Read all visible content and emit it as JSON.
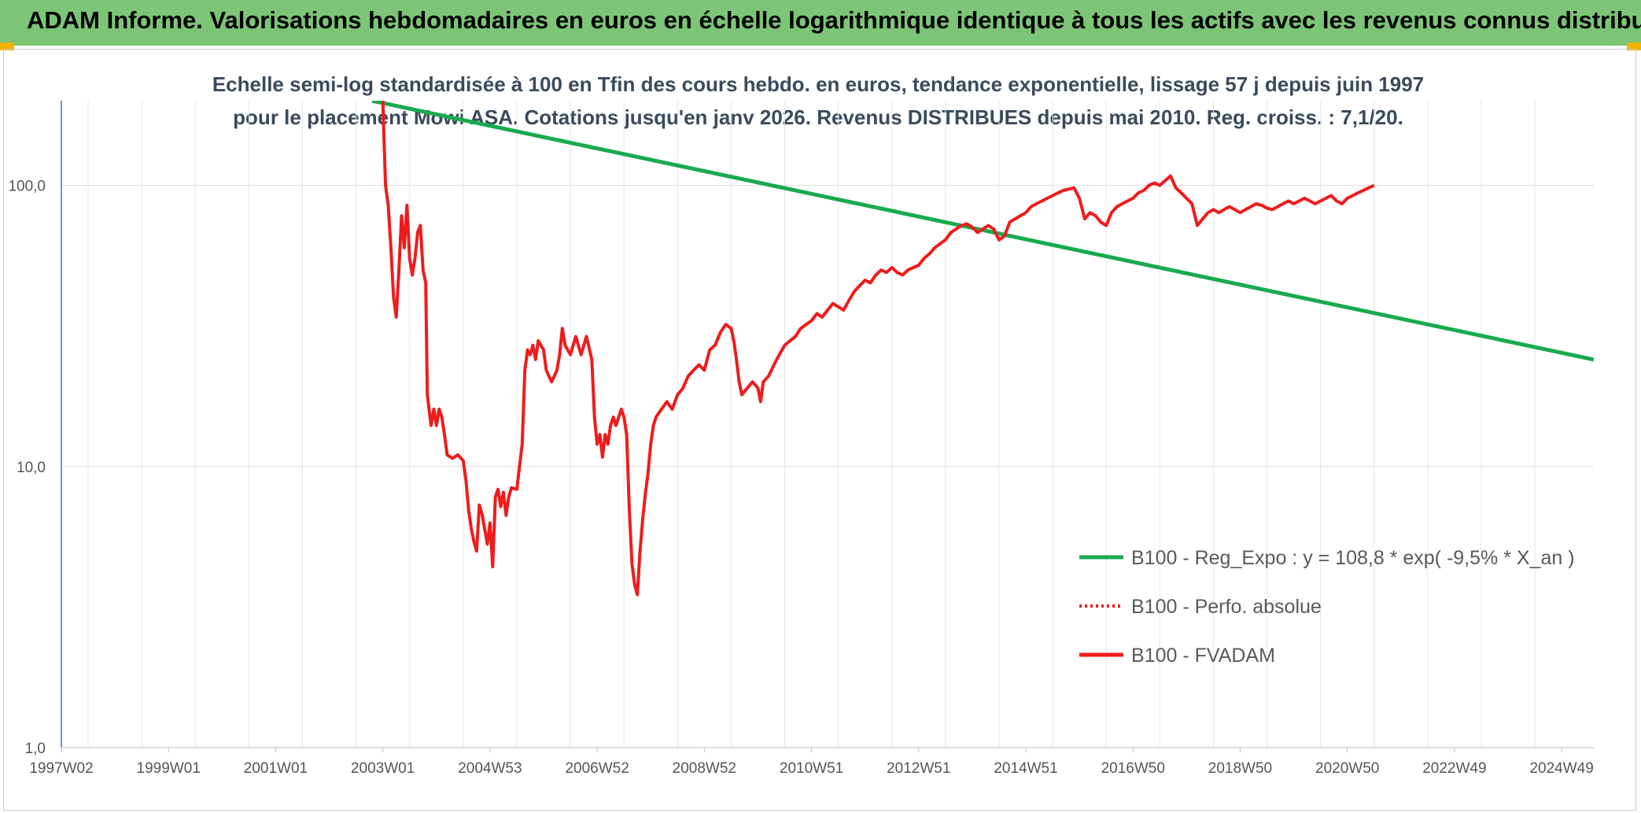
{
  "header": {
    "title": "ADAM Informe. Valorisations hebdomadaires en euros en échelle logarithmique identique à tous les actifs avec les revenus connus distribués"
  },
  "chart_data": {
    "type": "line",
    "title": "Echelle semi-log standardisée à 100 en Tfin des cours hebdo. en euros, tendance exponentielle, lissage 57 j depuis juin 1997 pour le placement Mowi ASA. Cotations jusqu'en janv 2026. Revenus DISTRIBUES depuis mai 2010. Reg. croiss. : 7,1/20.",
    "xlabel": "",
    "ylabel": "",
    "y_scale": "log",
    "ylim": [
      1,
      200
    ],
    "xlim": [
      1997.5,
      2026.1
    ],
    "y_tick_labels": [
      "1,0",
      "10,0",
      "100,0"
    ],
    "y_tick_values": [
      1,
      10,
      100
    ],
    "x_tick_labels": [
      "1997W02",
      "1999W01",
      "2001W01",
      "2003W01",
      "2004W53",
      "2006W52",
      "2008W52",
      "2010W51",
      "2012W51",
      "2014W51",
      "2016W50",
      "2018W50",
      "2020W50",
      "2022W49",
      "2024W49"
    ],
    "x_tick_values": [
      1997.5,
      1999.5,
      2001.5,
      2003.5,
      2005.5,
      2007.5,
      2009.5,
      2011.5,
      2013.5,
      2015.5,
      2017.5,
      2019.5,
      2021.5,
      2023.5,
      2025.5
    ],
    "grid": true,
    "legend_position": "right",
    "series": [
      {
        "name": "B100 - Reg_Expo : y = 108,8 * exp( -9,5% *  X_an )",
        "color": "#1aaa4f",
        "style": "solid",
        "points": [
          [
            2003.3,
            200
          ],
          [
            2026.1,
            24
          ]
        ]
      },
      {
        "name": "B100 - Perfo. absolue",
        "color": "#ee1c1c",
        "style": "dotted",
        "points": []
      },
      {
        "name": "B100 - FVADAM",
        "color": "#ee1c1c",
        "style": "solid",
        "points": [
          [
            2003.5,
            200
          ],
          [
            2003.52,
            150
          ],
          [
            2003.55,
            100
          ],
          [
            2003.6,
            85
          ],
          [
            2003.65,
            60
          ],
          [
            2003.7,
            40
          ],
          [
            2003.75,
            34
          ],
          [
            2003.8,
            50
          ],
          [
            2003.85,
            78
          ],
          [
            2003.9,
            60
          ],
          [
            2003.95,
            85
          ],
          [
            2004.0,
            55
          ],
          [
            2004.05,
            48
          ],
          [
            2004.1,
            55
          ],
          [
            2004.15,
            68
          ],
          [
            2004.2,
            72
          ],
          [
            2004.25,
            50
          ],
          [
            2004.3,
            45
          ],
          [
            2004.33,
            18
          ],
          [
            2004.4,
            14
          ],
          [
            2004.45,
            16
          ],
          [
            2004.5,
            14
          ],
          [
            2004.55,
            16
          ],
          [
            2004.6,
            15
          ],
          [
            2004.65,
            13
          ],
          [
            2004.7,
            11
          ],
          [
            2004.8,
            10.7
          ],
          [
            2004.9,
            11
          ],
          [
            2005.0,
            10.5
          ],
          [
            2005.05,
            9
          ],
          [
            2005.1,
            7
          ],
          [
            2005.15,
            6
          ],
          [
            2005.2,
            5.4
          ],
          [
            2005.25,
            5.0
          ],
          [
            2005.3,
            7.3
          ],
          [
            2005.35,
            6.8
          ],
          [
            2005.4,
            6
          ],
          [
            2005.45,
            5.3
          ],
          [
            2005.5,
            6.3
          ],
          [
            2005.55,
            4.4
          ],
          [
            2005.6,
            7.8
          ],
          [
            2005.65,
            8.3
          ],
          [
            2005.7,
            7.2
          ],
          [
            2005.75,
            8.1
          ],
          [
            2005.8,
            6.7
          ],
          [
            2005.85,
            7.8
          ],
          [
            2005.9,
            8.4
          ],
          [
            2006.0,
            8.3
          ],
          [
            2006.05,
            10
          ],
          [
            2006.1,
            12
          ],
          [
            2006.15,
            22
          ],
          [
            2006.2,
            26
          ],
          [
            2006.25,
            25
          ],
          [
            2006.3,
            27
          ],
          [
            2006.35,
            24
          ],
          [
            2006.4,
            28
          ],
          [
            2006.5,
            26
          ],
          [
            2006.55,
            22
          ],
          [
            2006.65,
            20
          ],
          [
            2006.75,
            22
          ],
          [
            2006.8,
            25
          ],
          [
            2006.85,
            31
          ],
          [
            2006.9,
            27
          ],
          [
            2007.0,
            25
          ],
          [
            2007.1,
            29
          ],
          [
            2007.2,
            25
          ],
          [
            2007.3,
            29
          ],
          [
            2007.4,
            24
          ],
          [
            2007.45,
            15
          ],
          [
            2007.5,
            12
          ],
          [
            2007.55,
            13
          ],
          [
            2007.6,
            10.8
          ],
          [
            2007.65,
            13
          ],
          [
            2007.7,
            12
          ],
          [
            2007.75,
            14
          ],
          [
            2007.8,
            15
          ],
          [
            2007.85,
            14
          ],
          [
            2007.95,
            16
          ],
          [
            2008.0,
            15
          ],
          [
            2008.05,
            13
          ],
          [
            2008.1,
            7
          ],
          [
            2008.15,
            4.5
          ],
          [
            2008.2,
            3.8
          ],
          [
            2008.25,
            3.5
          ],
          [
            2008.3,
            5
          ],
          [
            2008.35,
            6.5
          ],
          [
            2008.4,
            8
          ],
          [
            2008.45,
            9.5
          ],
          [
            2008.5,
            12
          ],
          [
            2008.55,
            14
          ],
          [
            2008.6,
            15
          ],
          [
            2008.7,
            16
          ],
          [
            2008.8,
            17
          ],
          [
            2008.9,
            16
          ],
          [
            2009.0,
            18
          ],
          [
            2009.1,
            19
          ],
          [
            2009.2,
            21
          ],
          [
            2009.3,
            22
          ],
          [
            2009.4,
            23
          ],
          [
            2009.5,
            22
          ],
          [
            2009.6,
            26
          ],
          [
            2009.7,
            27
          ],
          [
            2009.8,
            30
          ],
          [
            2009.9,
            32
          ],
          [
            2010.0,
            31
          ],
          [
            2010.05,
            28
          ],
          [
            2010.1,
            24
          ],
          [
            2010.15,
            20
          ],
          [
            2010.2,
            18
          ],
          [
            2010.3,
            19
          ],
          [
            2010.4,
            20
          ],
          [
            2010.5,
            19
          ],
          [
            2010.55,
            17
          ],
          [
            2010.6,
            20
          ],
          [
            2010.7,
            21
          ],
          [
            2010.8,
            23
          ],
          [
            2010.9,
            25
          ],
          [
            2011.0,
            27
          ],
          [
            2011.1,
            28
          ],
          [
            2011.2,
            29
          ],
          [
            2011.3,
            31
          ],
          [
            2011.4,
            32
          ],
          [
            2011.5,
            33
          ],
          [
            2011.6,
            35
          ],
          [
            2011.7,
            34
          ],
          [
            2011.8,
            36
          ],
          [
            2011.9,
            38
          ],
          [
            2012.0,
            37
          ],
          [
            2012.1,
            36
          ],
          [
            2012.2,
            39
          ],
          [
            2012.3,
            42
          ],
          [
            2012.4,
            44
          ],
          [
            2012.5,
            46
          ],
          [
            2012.6,
            45
          ],
          [
            2012.7,
            48
          ],
          [
            2012.8,
            50
          ],
          [
            2012.9,
            49
          ],
          [
            2013.0,
            51
          ],
          [
            2013.1,
            49
          ],
          [
            2013.2,
            48
          ],
          [
            2013.3,
            50
          ],
          [
            2013.4,
            51
          ],
          [
            2013.5,
            52
          ],
          [
            2013.6,
            55
          ],
          [
            2013.7,
            57
          ],
          [
            2013.8,
            60
          ],
          [
            2013.9,
            62
          ],
          [
            2014.0,
            64
          ],
          [
            2014.1,
            68
          ],
          [
            2014.2,
            70
          ],
          [
            2014.3,
            72
          ],
          [
            2014.4,
            73
          ],
          [
            2014.5,
            71
          ],
          [
            2014.6,
            68
          ],
          [
            2014.7,
            70
          ],
          [
            2014.8,
            72
          ],
          [
            2014.9,
            70
          ],
          [
            2015.0,
            64
          ],
          [
            2015.1,
            66
          ],
          [
            2015.2,
            74
          ],
          [
            2015.3,
            76
          ],
          [
            2015.4,
            78
          ],
          [
            2015.5,
            80
          ],
          [
            2015.6,
            84
          ],
          [
            2015.7,
            86
          ],
          [
            2015.8,
            88
          ],
          [
            2015.9,
            90
          ],
          [
            2016.0,
            92
          ],
          [
            2016.1,
            94
          ],
          [
            2016.2,
            96
          ],
          [
            2016.3,
            97
          ],
          [
            2016.4,
            98
          ],
          [
            2016.5,
            90
          ],
          [
            2016.6,
            76
          ],
          [
            2016.7,
            80
          ],
          [
            2016.8,
            78
          ],
          [
            2016.9,
            74
          ],
          [
            2017.0,
            72
          ],
          [
            2017.1,
            80
          ],
          [
            2017.2,
            84
          ],
          [
            2017.3,
            86
          ],
          [
            2017.4,
            88
          ],
          [
            2017.5,
            90
          ],
          [
            2017.6,
            94
          ],
          [
            2017.7,
            96
          ],
          [
            2017.8,
            100
          ],
          [
            2017.9,
            102
          ],
          [
            2018.0,
            100
          ],
          [
            2018.1,
            104
          ],
          [
            2018.2,
            108
          ],
          [
            2018.3,
            98
          ],
          [
            2018.4,
            94
          ],
          [
            2018.5,
            90
          ],
          [
            2018.6,
            86
          ],
          [
            2018.7,
            72
          ],
          [
            2018.8,
            76
          ],
          [
            2018.9,
            80
          ],
          [
            2019.0,
            82
          ],
          [
            2019.1,
            80
          ],
          [
            2019.2,
            82
          ],
          [
            2019.3,
            84
          ],
          [
            2019.4,
            82
          ],
          [
            2019.5,
            80
          ],
          [
            2019.6,
            82
          ],
          [
            2019.7,
            84
          ],
          [
            2019.8,
            86
          ],
          [
            2019.9,
            85
          ],
          [
            2020.0,
            83
          ],
          [
            2020.1,
            82
          ],
          [
            2020.2,
            84
          ],
          [
            2020.3,
            86
          ],
          [
            2020.4,
            88
          ],
          [
            2020.5,
            86
          ],
          [
            2020.6,
            88
          ],
          [
            2020.7,
            90
          ],
          [
            2020.8,
            88
          ],
          [
            2020.9,
            86
          ],
          [
            2021.0,
            88
          ],
          [
            2021.1,
            90
          ],
          [
            2021.2,
            92
          ],
          [
            2021.3,
            88
          ],
          [
            2021.4,
            86
          ],
          [
            2021.5,
            90
          ],
          [
            2021.6,
            92
          ],
          [
            2021.7,
            94
          ],
          [
            2021.8,
            96
          ],
          [
            2021.9,
            98
          ],
          [
            2022.0,
            100
          ]
        ]
      }
    ]
  }
}
